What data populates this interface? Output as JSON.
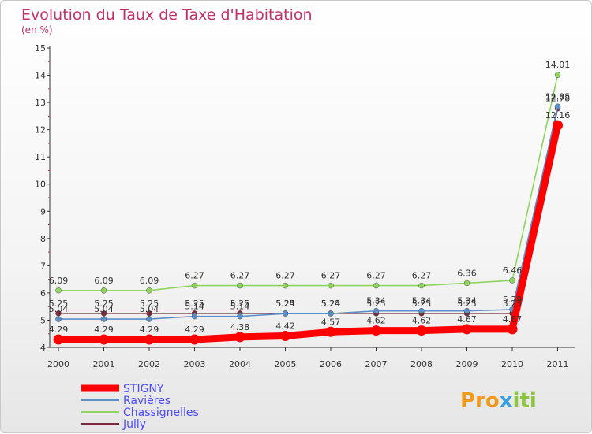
{
  "chart_data": {
    "type": "line",
    "title": "Evolution du Taux de Taxe d'Habitation",
    "subtitle": "(en %)",
    "xlabel": "",
    "ylabel": "",
    "x": [
      "2000",
      "2001",
      "2002",
      "2003",
      "2004",
      "2005",
      "2006",
      "2007",
      "2008",
      "2009",
      "2010",
      "2011"
    ],
    "ylim": [
      4,
      15
    ],
    "yticks": [
      "4",
      "5",
      "6",
      "7",
      "8",
      "9",
      "10",
      "11",
      "12",
      "13",
      "14",
      "15"
    ],
    "grid": false,
    "legend": "bottom-left",
    "series": [
      {
        "name": "STIGNY",
        "color": "#ff0000",
        "values": [
          4.29,
          4.29,
          4.29,
          4.29,
          4.38,
          4.42,
          4.57,
          4.62,
          4.62,
          4.67,
          4.67,
          12.16
        ],
        "labels": [
          "4.29",
          "4.29",
          "4.29",
          "4.29",
          "4.38",
          "4.42",
          "4.57",
          "4.62",
          "4.62",
          "4.67",
          "4.67",
          "12.16"
        ]
      },
      {
        "name": "Ravières",
        "color": "#5b8fc7",
        "values": [
          5.04,
          5.04,
          5.04,
          5.14,
          5.14,
          5.24,
          5.24,
          5.34,
          5.34,
          5.34,
          5.39,
          12.85
        ],
        "labels": [
          "5.04",
          "5.04",
          "5.04",
          "5.14",
          "5.14",
          "5.24",
          "5.24",
          "5.34",
          "5.34",
          "5.34",
          "5.39",
          "12.85"
        ]
      },
      {
        "name": "Chassignelles",
        "color": "#8fd45f",
        "values": [
          6.09,
          6.09,
          6.09,
          6.27,
          6.27,
          6.27,
          6.27,
          6.27,
          6.27,
          6.36,
          6.46,
          14.01
        ],
        "labels": [
          "6.09",
          "6.09",
          "6.09",
          "6.27",
          "6.27",
          "6.27",
          "6.27",
          "6.27",
          "6.27",
          "6.36",
          "6.46",
          "14.01"
        ]
      },
      {
        "name": "Jully",
        "color": "#7a2a3a",
        "values": [
          5.25,
          5.25,
          5.25,
          5.25,
          5.25,
          5.25,
          5.25,
          5.25,
          5.25,
          5.25,
          5.25,
          12.78
        ],
        "labels": [
          "5.25",
          "5.25",
          "5.25",
          "5.25",
          "5.25",
          "5.25",
          "5.25",
          "5.25",
          "5.25",
          "5.25",
          "5.25",
          "12.78"
        ]
      }
    ]
  },
  "logo": {
    "p1": "Pro",
    "x": "x",
    "p2": "iti"
  }
}
